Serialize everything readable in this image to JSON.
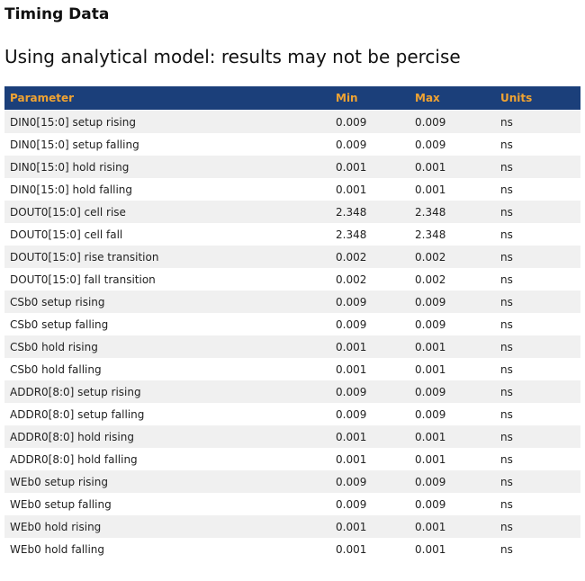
{
  "page": {
    "title": "Timing Data",
    "subtitle": "Using analytical model: results may not be percise"
  },
  "table": {
    "columns": [
      "Parameter",
      "Min",
      "Max",
      "Units"
    ],
    "rows": [
      {
        "parameter": "DIN0[15:0] setup rising",
        "min": "0.009",
        "max": "0.009",
        "units": "ns"
      },
      {
        "parameter": "DIN0[15:0] setup falling",
        "min": "0.009",
        "max": "0.009",
        "units": "ns"
      },
      {
        "parameter": "DIN0[15:0] hold rising",
        "min": "0.001",
        "max": "0.001",
        "units": "ns"
      },
      {
        "parameter": "DIN0[15:0] hold falling",
        "min": "0.001",
        "max": "0.001",
        "units": "ns"
      },
      {
        "parameter": "DOUT0[15:0] cell rise",
        "min": "2.348",
        "max": "2.348",
        "units": "ns"
      },
      {
        "parameter": "DOUT0[15:0] cell fall",
        "min": "2.348",
        "max": "2.348",
        "units": "ns"
      },
      {
        "parameter": "DOUT0[15:0] rise transition",
        "min": "0.002",
        "max": "0.002",
        "units": "ns"
      },
      {
        "parameter": "DOUT0[15:0] fall transition",
        "min": "0.002",
        "max": "0.002",
        "units": "ns"
      },
      {
        "parameter": "CSb0 setup rising",
        "min": "0.009",
        "max": "0.009",
        "units": "ns"
      },
      {
        "parameter": "CSb0 setup falling",
        "min": "0.009",
        "max": "0.009",
        "units": "ns"
      },
      {
        "parameter": "CSb0 hold rising",
        "min": "0.001",
        "max": "0.001",
        "units": "ns"
      },
      {
        "parameter": "CSb0 hold falling",
        "min": "0.001",
        "max": "0.001",
        "units": "ns"
      },
      {
        "parameter": "ADDR0[8:0] setup rising",
        "min": "0.009",
        "max": "0.009",
        "units": "ns"
      },
      {
        "parameter": "ADDR0[8:0] setup falling",
        "min": "0.009",
        "max": "0.009",
        "units": "ns"
      },
      {
        "parameter": "ADDR0[8:0] hold rising",
        "min": "0.001",
        "max": "0.001",
        "units": "ns"
      },
      {
        "parameter": "ADDR0[8:0] hold falling",
        "min": "0.001",
        "max": "0.001",
        "units": "ns"
      },
      {
        "parameter": "WEb0 setup rising",
        "min": "0.009",
        "max": "0.009",
        "units": "ns"
      },
      {
        "parameter": "WEb0 setup falling",
        "min": "0.009",
        "max": "0.009",
        "units": "ns"
      },
      {
        "parameter": "WEb0 hold rising",
        "min": "0.001",
        "max": "0.001",
        "units": "ns"
      },
      {
        "parameter": "WEb0 hold falling",
        "min": "0.001",
        "max": "0.001",
        "units": "ns"
      }
    ]
  },
  "colors": {
    "header_bg": "#1B3F7A",
    "header_text": "#F0A332",
    "row_alt_bg": "#F0F0F0",
    "body_text": "#222222"
  }
}
